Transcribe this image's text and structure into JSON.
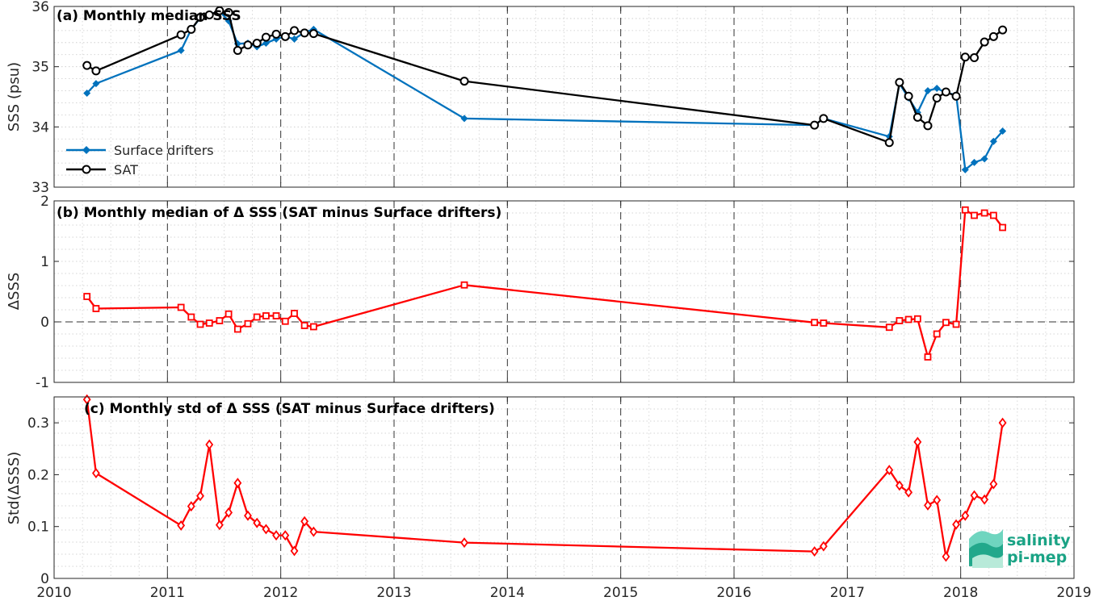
{
  "chart_data": [
    {
      "id": "a",
      "type": "line",
      "title": "(a) Monthly median SSS",
      "ylabel": "SSS (psu)",
      "xlim": [
        2010,
        2019
      ],
      "ylim": [
        33,
        36
      ],
      "yticks": [
        33,
        34,
        35,
        36
      ],
      "grid": true,
      "legend_position": "lower-left",
      "series": [
        {
          "name": "Surface drifters",
          "color": "#0072bd",
          "marker": "filled-diamond",
          "x": [
            2010.29,
            2010.37,
            2011.12,
            2011.21,
            2011.29,
            2011.37,
            2011.46,
            2011.54,
            2011.62,
            2011.71,
            2011.79,
            2011.87,
            2011.96,
            2012.04,
            2012.12,
            2012.21,
            2012.29,
            2013.62,
            2016.71,
            2016.79,
            2017.37,
            2017.46,
            2017.54,
            2017.62,
            2017.71,
            2017.79,
            2017.87,
            2017.96,
            2018.04,
            2018.12,
            2018.21,
            2018.29,
            2018.37
          ],
          "y": [
            34.56,
            34.72,
            35.27,
            35.62,
            35.81,
            35.87,
            35.92,
            35.76,
            35.38,
            35.39,
            35.33,
            35.39,
            35.46,
            35.5,
            35.46,
            35.57,
            35.62,
            34.14,
            34.03,
            34.14,
            33.84,
            34.72,
            34.48,
            34.24,
            34.6,
            34.64,
            34.57,
            34.53,
            33.29,
            33.41,
            33.47,
            33.76,
            33.93
          ]
        },
        {
          "name": "SAT",
          "color": "#000000",
          "marker": "open-circle",
          "x": [
            2010.29,
            2010.37,
            2011.12,
            2011.21,
            2011.29,
            2011.37,
            2011.46,
            2011.54,
            2011.62,
            2011.71,
            2011.79,
            2011.87,
            2011.96,
            2012.04,
            2012.12,
            2012.21,
            2012.29,
            2013.62,
            2016.71,
            2016.79,
            2017.37,
            2017.46,
            2017.54,
            2017.62,
            2017.71,
            2017.79,
            2017.87,
            2017.96,
            2018.04,
            2018.12,
            2018.21,
            2018.29,
            2018.37
          ],
          "y": [
            35.02,
            34.93,
            35.53,
            35.62,
            35.82,
            35.86,
            35.93,
            35.9,
            35.27,
            35.36,
            35.39,
            35.49,
            35.54,
            35.5,
            35.6,
            35.56,
            35.55,
            34.76,
            34.03,
            34.14,
            33.74,
            34.74,
            34.51,
            34.16,
            34.02,
            34.48,
            34.58,
            34.51,
            35.16,
            35.15,
            35.41,
            35.5,
            35.61
          ]
        }
      ]
    },
    {
      "id": "b",
      "type": "line",
      "title": "(b) Monthly median of Δ SSS (SAT minus Surface drifters)",
      "ylabel": "ΔSSS",
      "xlim": [
        2010,
        2019
      ],
      "ylim": [
        -1,
        2
      ],
      "yticks": [
        -1,
        0,
        1,
        2
      ],
      "zero_line": true,
      "series": [
        {
          "color": "#ff0000",
          "marker": "open-square",
          "x": [
            2010.29,
            2010.37,
            2011.12,
            2011.21,
            2011.29,
            2011.37,
            2011.46,
            2011.54,
            2011.62,
            2011.71,
            2011.79,
            2011.87,
            2011.96,
            2012.04,
            2012.12,
            2012.21,
            2012.29,
            2013.62,
            2016.71,
            2016.79,
            2017.37,
            2017.46,
            2017.54,
            2017.62,
            2017.71,
            2017.79,
            2017.87,
            2017.96,
            2018.04,
            2018.12,
            2018.21,
            2018.29,
            2018.37
          ],
          "y": [
            0.42,
            0.22,
            0.24,
            0.08,
            -0.04,
            -0.02,
            0.02,
            0.13,
            -0.12,
            -0.03,
            0.08,
            0.1,
            0.1,
            0.01,
            0.14,
            -0.06,
            -0.08,
            0.61,
            -0.01,
            -0.02,
            -0.09,
            0.02,
            0.04,
            0.05,
            -0.58,
            -0.2,
            -0.01,
            -0.04,
            1.85,
            1.76,
            1.8,
            1.76,
            1.56
          ]
        }
      ]
    },
    {
      "id": "c",
      "type": "line",
      "title": "(c) Monthly std of Δ SSS (SAT minus Surface drifters)",
      "ylabel": "Std(ΔSSS)",
      "xlim": [
        2010,
        2019
      ],
      "ylim": [
        0,
        0.35
      ],
      "yticks": [
        0,
        0.1,
        0.2,
        0.3
      ],
      "ytick_labels": [
        "0",
        "0.1",
        "0.2",
        "0.3"
      ],
      "xticks": [
        2010,
        2011,
        2012,
        2013,
        2014,
        2015,
        2016,
        2017,
        2018,
        2019
      ],
      "xtick_labels": [
        "2010",
        "2011",
        "2012",
        "2013",
        "2014",
        "2015",
        "2016",
        "2017",
        "2018",
        "2019"
      ],
      "series": [
        {
          "color": "#ff0000",
          "marker": "open-diamond",
          "x": [
            2010.29,
            2010.37,
            2011.12,
            2011.21,
            2011.29,
            2011.37,
            2011.46,
            2011.54,
            2011.62,
            2011.71,
            2011.79,
            2011.87,
            2011.96,
            2012.04,
            2012.12,
            2012.21,
            2012.29,
            2013.62,
            2016.71,
            2016.79,
            2017.37,
            2017.46,
            2017.54,
            2017.62,
            2017.71,
            2017.79,
            2017.87,
            2017.96,
            2018.04,
            2018.12,
            2018.21,
            2018.29,
            2018.37
          ],
          "y": [
            0.345,
            0.203,
            0.102,
            0.139,
            0.159,
            0.258,
            0.103,
            0.127,
            0.184,
            0.121,
            0.107,
            0.095,
            0.083,
            0.083,
            0.053,
            0.11,
            0.09,
            0.069,
            0.052,
            0.062,
            0.209,
            0.179,
            0.166,
            0.263,
            0.141,
            0.151,
            0.042,
            0.104,
            0.121,
            0.16,
            0.152,
            0.182,
            0.3
          ]
        }
      ]
    }
  ],
  "logo": {
    "line1": "salinity",
    "line2": "pi-mep",
    "color": "#1aa385"
  }
}
